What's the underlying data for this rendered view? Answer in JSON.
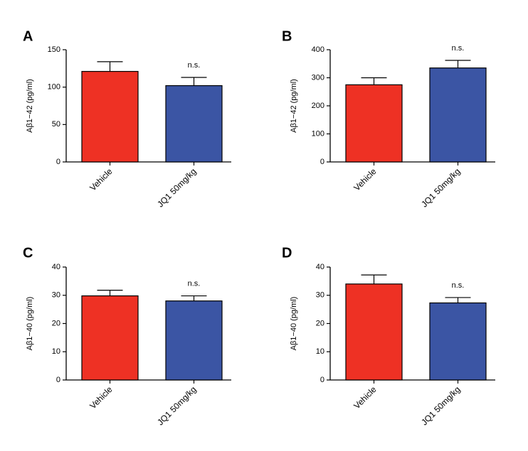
{
  "colors": {
    "vehicle": "#ee3124",
    "jq1": "#3b55a4",
    "axis": "#000000"
  },
  "chart_data": [
    {
      "type": "bar",
      "panel_label": "A",
      "categories": [
        "Vehicle",
        "JQ1 50mg/kg"
      ],
      "values": [
        121,
        102
      ],
      "errors": [
        13,
        11
      ],
      "ylabel": "Aβ1−42 (pg/ml)",
      "ylim": [
        0,
        150
      ],
      "yticks": [
        0,
        50,
        100,
        150
      ],
      "annotations": [
        {
          "category": "JQ1 50mg/kg",
          "text": "n.s."
        }
      ],
      "legend": "none",
      "grid": false
    },
    {
      "type": "bar",
      "panel_label": "B",
      "categories": [
        "Vehicle",
        "JQ1 50mg/kg"
      ],
      "values": [
        275,
        335
      ],
      "errors": [
        25,
        27
      ],
      "ylabel": "Aβ1−42 (pg/ml)",
      "ylim": [
        0,
        400
      ],
      "yticks": [
        0,
        100,
        200,
        300,
        400
      ],
      "annotations": [
        {
          "category": "JQ1 50mg/kg",
          "text": "n.s."
        }
      ],
      "legend": "none",
      "grid": false
    },
    {
      "type": "bar",
      "panel_label": "C",
      "categories": [
        "Vehicle",
        "JQ1 50mg/kg"
      ],
      "values": [
        29.8,
        28
      ],
      "errors": [
        2,
        1.8
      ],
      "ylabel": "Aβ1−40 (pg/ml)",
      "ylim": [
        0,
        40
      ],
      "yticks": [
        0,
        10,
        20,
        30,
        40
      ],
      "annotations": [
        {
          "category": "JQ1 50mg/kg",
          "text": "n.s."
        }
      ],
      "legend": "none",
      "grid": false
    },
    {
      "type": "bar",
      "panel_label": "D",
      "categories": [
        "Vehicle",
        "JQ1 50mg/kg"
      ],
      "values": [
        34,
        27.3
      ],
      "errors": [
        3.2,
        1.9
      ],
      "ylabel": "Aβ1−40 (pg/ml)",
      "ylim": [
        0,
        40
      ],
      "yticks": [
        0,
        10,
        20,
        30,
        40
      ],
      "annotations": [
        {
          "category": "JQ1 50mg/kg",
          "text": "n.s."
        }
      ],
      "legend": "none",
      "grid": false
    }
  ]
}
